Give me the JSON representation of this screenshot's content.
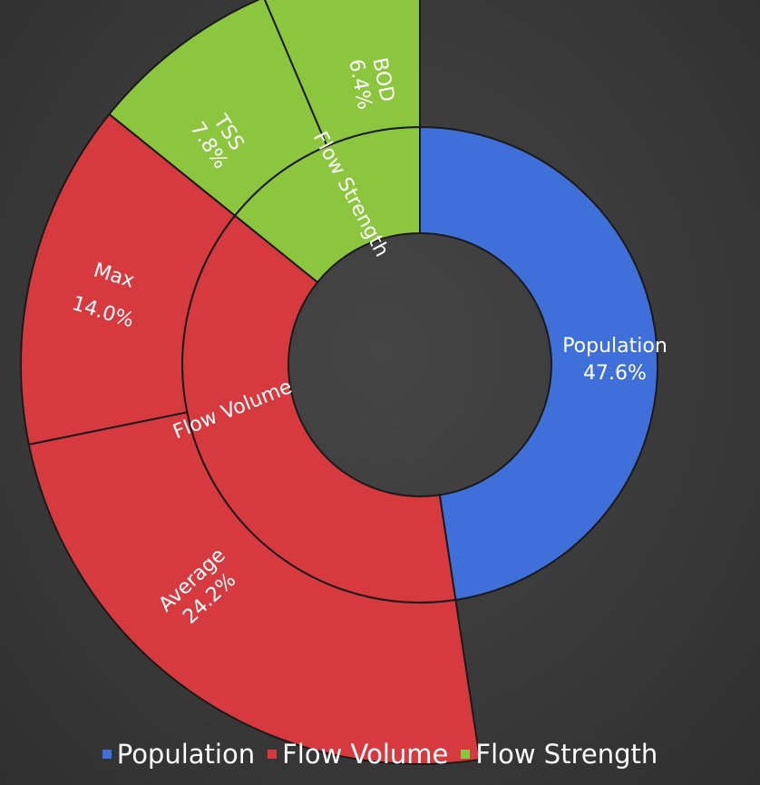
{
  "chart_data": {
    "type": "sunburst",
    "title": "",
    "inner_ring": [
      {
        "name": "Population",
        "label": "Population",
        "percent": "47.6%",
        "value": 47.6,
        "color": "#3f6fd8"
      },
      {
        "name": "Flow Volume",
        "label": "Flow Volume",
        "value": 38.2,
        "color": "#d63a3f"
      },
      {
        "name": "Flow Strength",
        "label": "Flow Strength",
        "value": 14.2,
        "color": "#8cc63f"
      }
    ],
    "outer_ring": [
      {
        "name": "BOD",
        "parent": "Flow Strength",
        "percent": "6.4%",
        "value": 6.4,
        "color": "#8cc63f"
      },
      {
        "name": "TSS",
        "parent": "Flow Strength",
        "percent": "7.8%",
        "value": 7.8,
        "color": "#8cc63f"
      },
      {
        "name": "Max",
        "parent": "Flow Volume",
        "percent": "14.0%",
        "value": 14.0,
        "color": "#d63a3f"
      },
      {
        "name": "Average",
        "parent": "Flow Volume",
        "percent": "24.2%",
        "value": 24.2,
        "color": "#d63a3f"
      }
    ],
    "legend": {
      "placement": "bottom",
      "entries": [
        {
          "label": "Population",
          "color": "#3f6fd8"
        },
        {
          "label": "Flow Volume",
          "color": "#d63a3f"
        },
        {
          "label": "Flow Strength",
          "color": "#8cc63f"
        }
      ]
    }
  }
}
